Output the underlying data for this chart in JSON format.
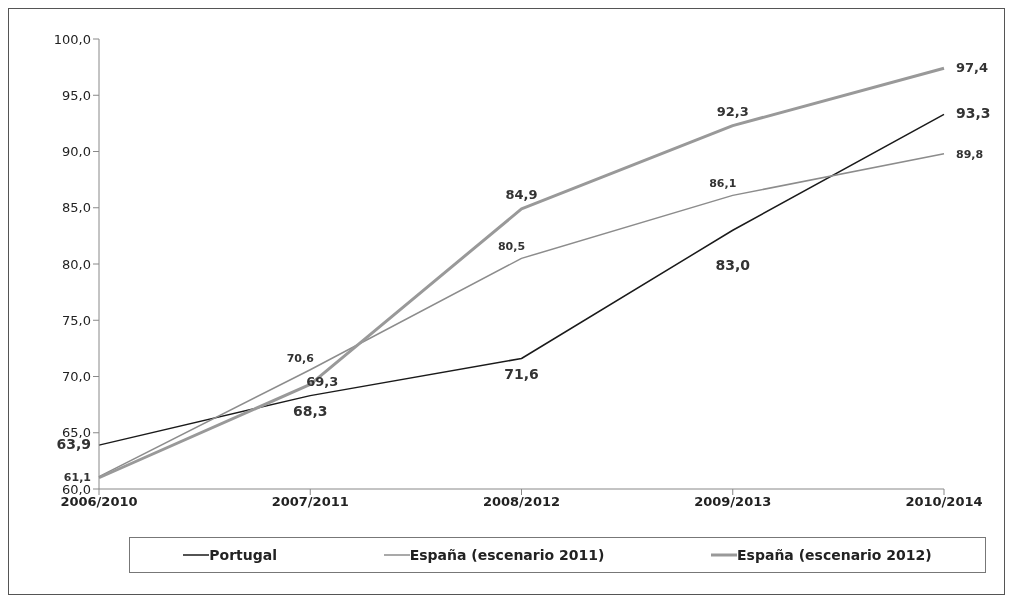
{
  "chart_data": {
    "type": "line",
    "categories": [
      "2006/2010",
      "2007/2011",
      "2008/2012",
      "2009/2013",
      "2010/2014"
    ],
    "series": [
      {
        "name": "Portugal",
        "color": "#1a1a1a",
        "values": [
          63.9,
          68.3,
          71.6,
          83.0,
          93.3
        ],
        "value_labels": [
          "63,9",
          "68,3",
          "71,6",
          "83,0",
          "93,3"
        ]
      },
      {
        "name": "España (escenario 2011)",
        "color": "#8c8c8c",
        "values": [
          61.1,
          70.6,
          80.5,
          86.1,
          89.8
        ],
        "value_labels": [
          "61,1",
          "70,6",
          "80,5",
          "86,1",
          "89,8"
        ]
      },
      {
        "name": "España (escenario 2012)",
        "color": "#999999",
        "values": [
          61.0,
          69.3,
          84.9,
          92.3,
          97.4
        ],
        "value_labels": [
          null,
          "69,3",
          "84,9",
          "92,3",
          "97,4"
        ]
      }
    ],
    "ylim": [
      60,
      100
    ],
    "yticks": [
      {
        "value": 60,
        "label": "60,0"
      },
      {
        "value": 65,
        "label": "65,0"
      },
      {
        "value": 70,
        "label": "70,0"
      },
      {
        "value": 75,
        "label": "75,0"
      },
      {
        "value": 80,
        "label": "80,0"
      },
      {
        "value": 85,
        "label": "85,0"
      },
      {
        "value": 90,
        "label": "90,0"
      },
      {
        "value": 95,
        "label": "95,0"
      },
      {
        "value": 100,
        "label": "100,0"
      }
    ],
    "grid": false,
    "legend": "bottom",
    "marker": "none",
    "line_style": "solid"
  }
}
